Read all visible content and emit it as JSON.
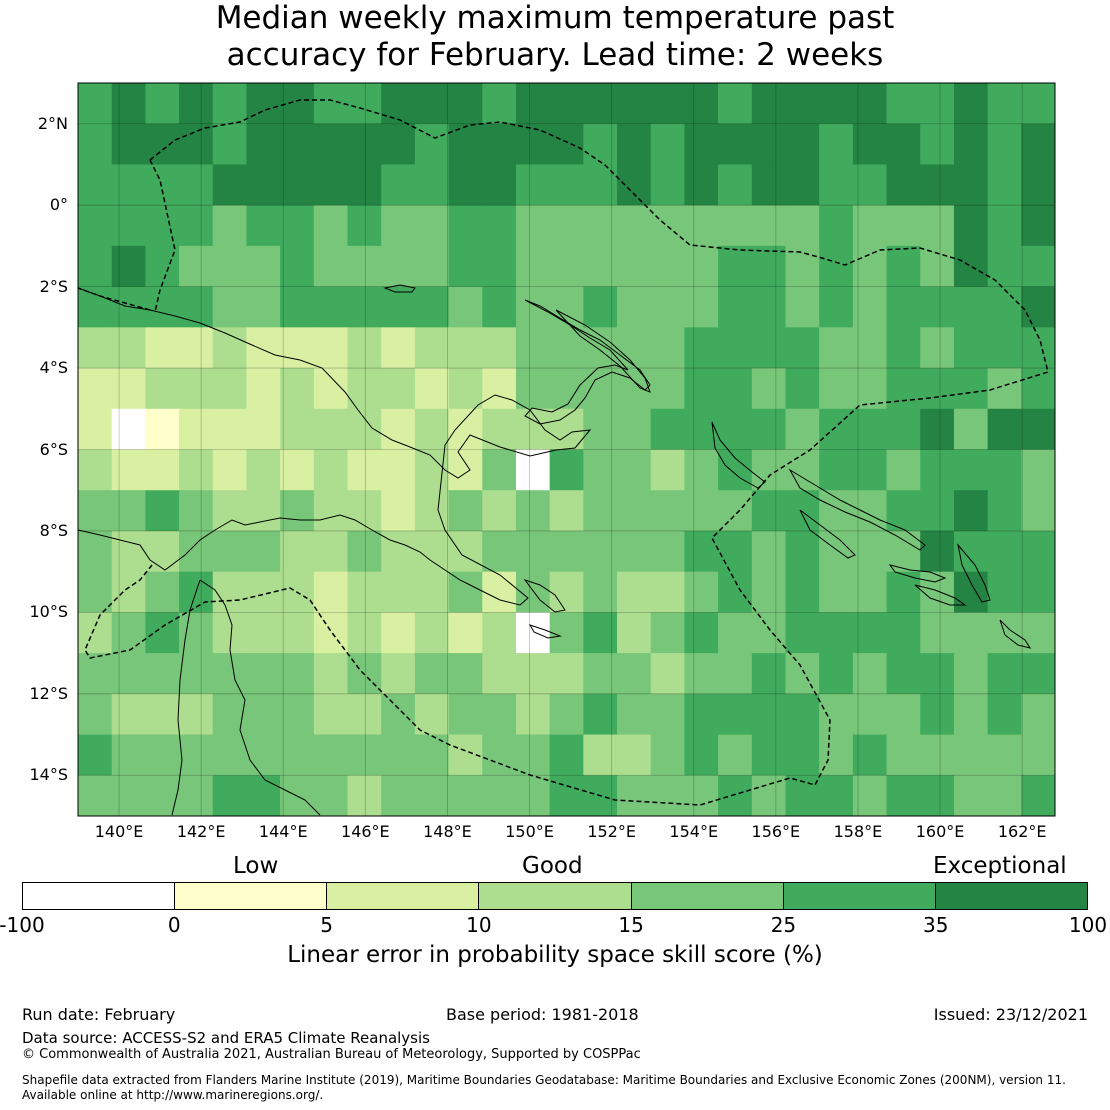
{
  "title_line1": "Median weekly maximum temperature past",
  "title_line2": "accuracy for February. Lead time: 2 weeks",
  "lat_labels": [
    "2°N",
    "0°",
    "2°S",
    "4°S",
    "6°S",
    "8°S",
    "10°S",
    "12°S",
    "14°S"
  ],
  "lat_values": [
    2,
    0,
    -2,
    -4,
    -6,
    -8,
    -10,
    -12,
    -14
  ],
  "lon_labels": [
    "140°E",
    "142°E",
    "144°E",
    "146°E",
    "148°E",
    "150°E",
    "152°E",
    "154°E",
    "156°E",
    "158°E",
    "160°E",
    "162°E"
  ],
  "lon_values": [
    140,
    142,
    144,
    146,
    148,
    150,
    152,
    154,
    156,
    158,
    160,
    162
  ],
  "map_extent": {
    "lon_min": 139.0,
    "lon_max": 162.8,
    "lat_min": -15.0,
    "lat_max": 3.0
  },
  "categories": {
    "low": "Low",
    "good": "Good",
    "exceptional": "Exceptional"
  },
  "colorbar": {
    "ticks": [
      "-100",
      "0",
      "5",
      "10",
      "15",
      "25",
      "35",
      "100"
    ],
    "colors": [
      "#ffffff",
      "#ffffcc",
      "#d9f0a3",
      "#addd8e",
      "#78c679",
      "#41ab5d",
      "#238443"
    ],
    "title": "Linear error in probability space skill score (%)"
  },
  "footer": {
    "run_date": "Run date: February",
    "base_period": "Base period: 1981-2018",
    "issued": "Issued: 23/12/2021",
    "data_source": "Data source: ACCESS-S2 and ERA5 Climate Reanalysis",
    "copyright": "© Commonwealth of Australia 2021, Australian Bureau of Meteorology, Supported by COSPPac",
    "shapefile1": "Shapefile data extracted from Flanders Marine Institute (2019), Maritime Boundaries Geodatabase: Maritime Boundaries and Exclusive Economic Zones (200NM), version 11.",
    "shapefile2": "Available online at http://www.marineregions.org/."
  }
}
